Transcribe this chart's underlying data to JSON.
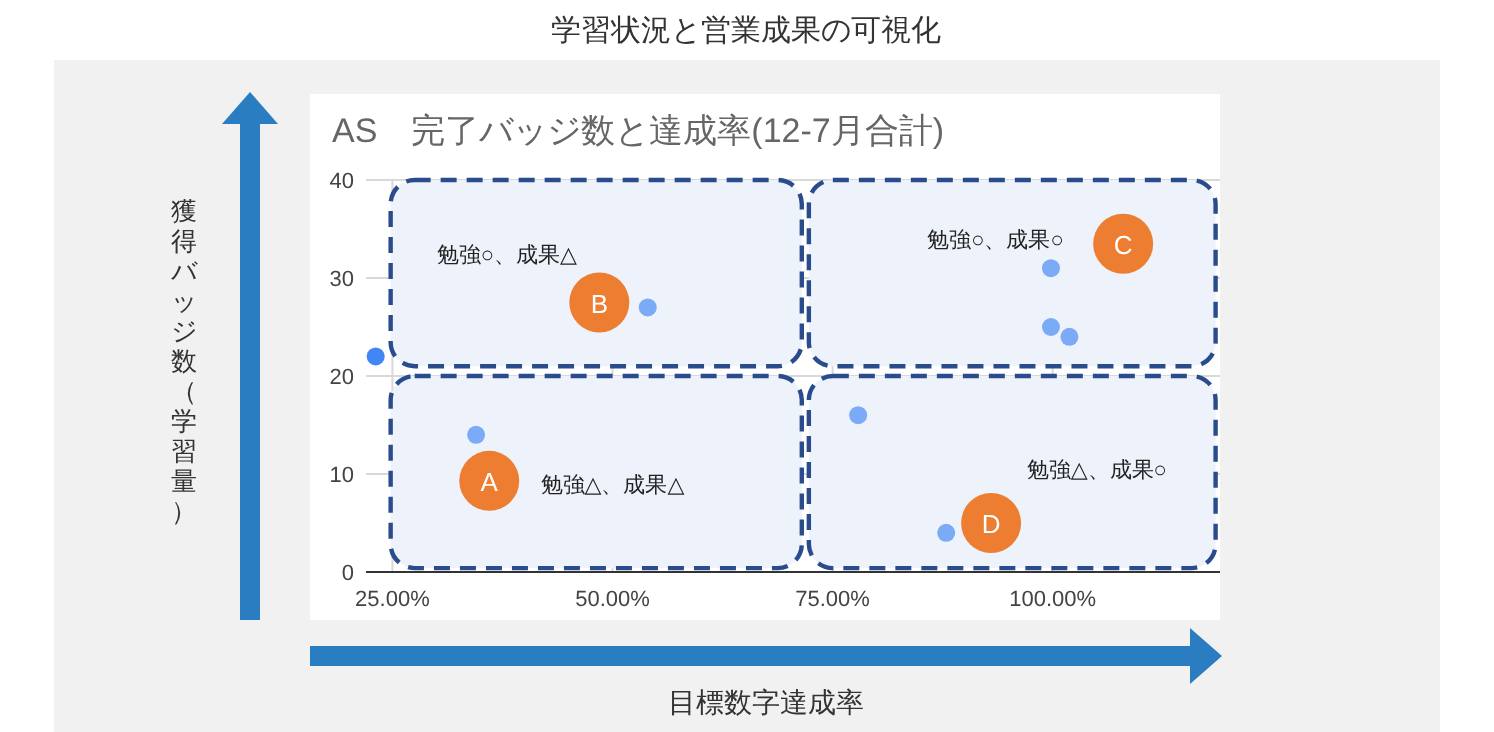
{
  "chart_data": {
    "type": "scatter",
    "title": "学習状況と営業成果の可視化",
    "subtitle": "AS　完了バッジ数と達成率(12-7月合計)",
    "xlabel": "目標数字達成率",
    "ylabel": "獲得バッジ数（学習量）",
    "x": [
      23.1,
      34.5,
      54.0,
      77.9,
      87.9,
      99.8,
      99.8,
      101.9
    ],
    "values": [
      22,
      14,
      27,
      16,
      4,
      31,
      25,
      24
    ],
    "colors": [
      "#4285f4",
      "#7baaf7",
      "#7baaf7",
      "#7baaf7",
      "#7baaf7",
      "#7baaf7",
      "#7baaf7",
      "#7baaf7"
    ],
    "xlim": [
      22,
      119
    ],
    "ylim": [
      0,
      40
    ],
    "xticks": [
      {
        "value": 25,
        "label": "25.00%"
      },
      {
        "value": 50,
        "label": "50.00%"
      },
      {
        "value": 75,
        "label": "75.00%"
      },
      {
        "value": 100,
        "label": "100.00%"
      }
    ],
    "yticks": [
      0,
      10,
      20,
      30,
      40
    ],
    "grid": true,
    "marker": "circle",
    "annotations": [
      "勉強○、成果△",
      "勉強○、成果○",
      "勉強△、成果△",
      "勉強△、成果○",
      "A",
      "B",
      "C",
      "D"
    ]
  }
}
